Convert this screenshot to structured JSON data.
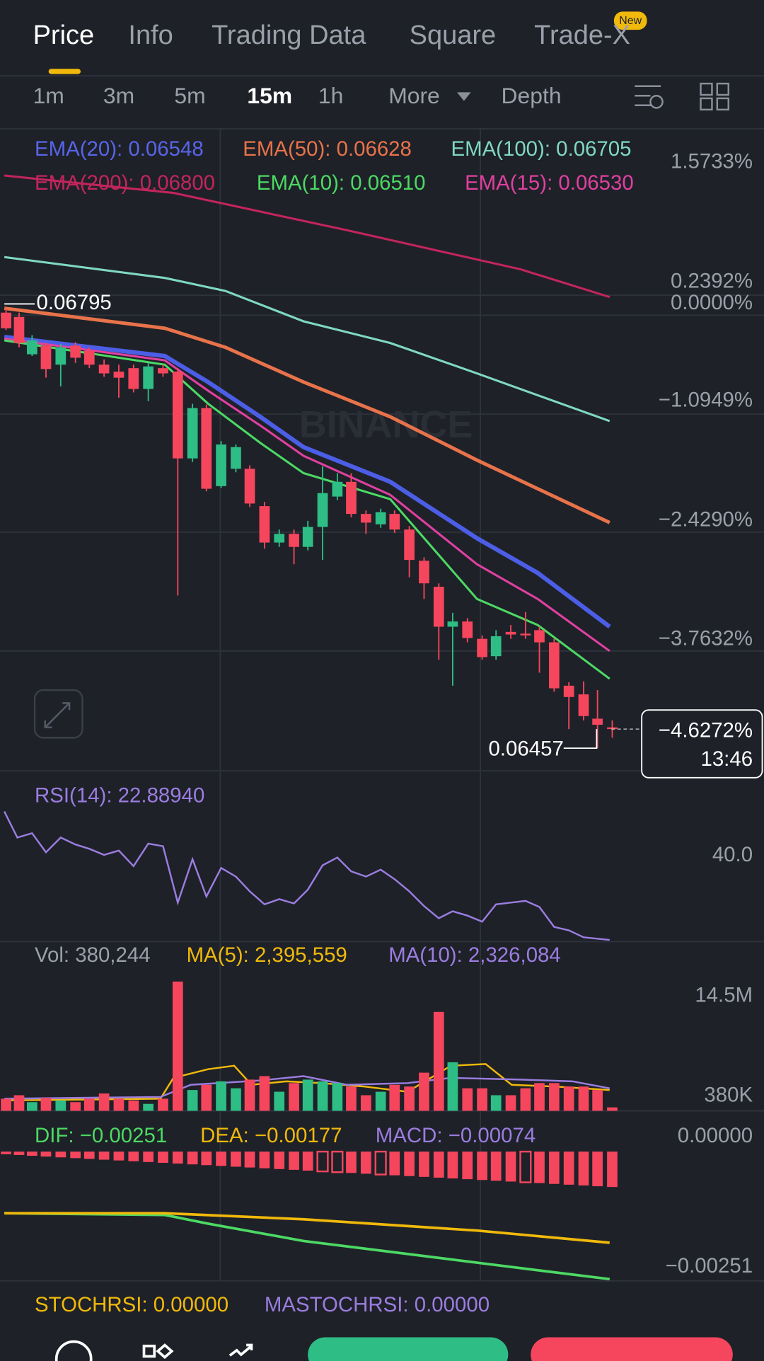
{
  "tabs": {
    "items": [
      "Price",
      "Info",
      "Trading Data",
      "Square",
      "Trade-X"
    ],
    "badge": "New"
  },
  "intervals": {
    "items": [
      "1m",
      "3m",
      "5m",
      "15m",
      "1h"
    ],
    "more": "More",
    "depth": "Depth"
  },
  "main": {
    "ema_labels": [
      "EMA(20): 0.06548",
      "EMA(50): 0.06628",
      "EMA(100): 0.06705",
      "EMA(200): 0.06800",
      "EMA(10): 0.06510",
      "EMA(15): 0.06530"
    ],
    "axis_labels": [
      "1.5733%",
      "0.2392%",
      "0.0000%",
      "−1.0949%",
      "−2.4290%",
      "−3.7632%"
    ],
    "high_label": "0.06795",
    "low_label": "0.06457",
    "current_change": "−4.6272%",
    "countdown": "13:46",
    "watermark": "BINANCE"
  },
  "rsi": {
    "label": "RSI(14): 22.88940",
    "axis_label": "40.0"
  },
  "volume": {
    "labels": [
      "Vol: 380,244",
      "MA(5): 2,395,559",
      "MA(10): 2,326,084"
    ],
    "axis_labels": [
      "14.5M",
      "380K"
    ]
  },
  "macd": {
    "labels": [
      "DIF: −0.00251",
      "DEA: −0.00177",
      "MACD: −0.00074"
    ],
    "axis_labels": [
      "0.00000",
      "−0.00251"
    ]
  },
  "stochrsi": {
    "labels": [
      "STOCHRSI: 0.00000",
      "MASTOCHRSI: 0.00000"
    ]
  }
}
